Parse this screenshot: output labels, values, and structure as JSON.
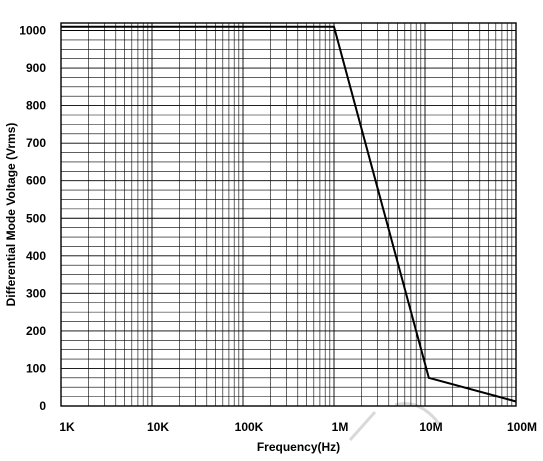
{
  "chart_data": {
    "type": "line",
    "title": "",
    "xlabel": "Frequency(Hz)",
    "ylabel": "Differential Mode Voltage (Vrms)",
    "xscale": "log",
    "xlim": [
      1000,
      100000000
    ],
    "ylim": [
      0,
      1000
    ],
    "x_ticks": [
      1000,
      10000,
      100000,
      1000000,
      10000000,
      100000000
    ],
    "x_tick_labels": [
      "1K",
      "10K",
      "100K",
      "1M",
      "10M",
      "100M"
    ],
    "y_ticks": [
      0,
      100,
      200,
      300,
      400,
      500,
      600,
      700,
      800,
      900,
      1000
    ],
    "y_tick_labels": [
      "0",
      "100",
      "200",
      "300",
      "400",
      "500",
      "600",
      "700",
      "800",
      "900",
      "1000"
    ],
    "y_minor_step": 25,
    "grid": true,
    "legend": "none",
    "series": [
      {
        "x": [
          1000,
          1000000,
          11000000,
          100000000
        ],
        "y": [
          1010,
          1010,
          75,
          12
        ]
      }
    ]
  }
}
